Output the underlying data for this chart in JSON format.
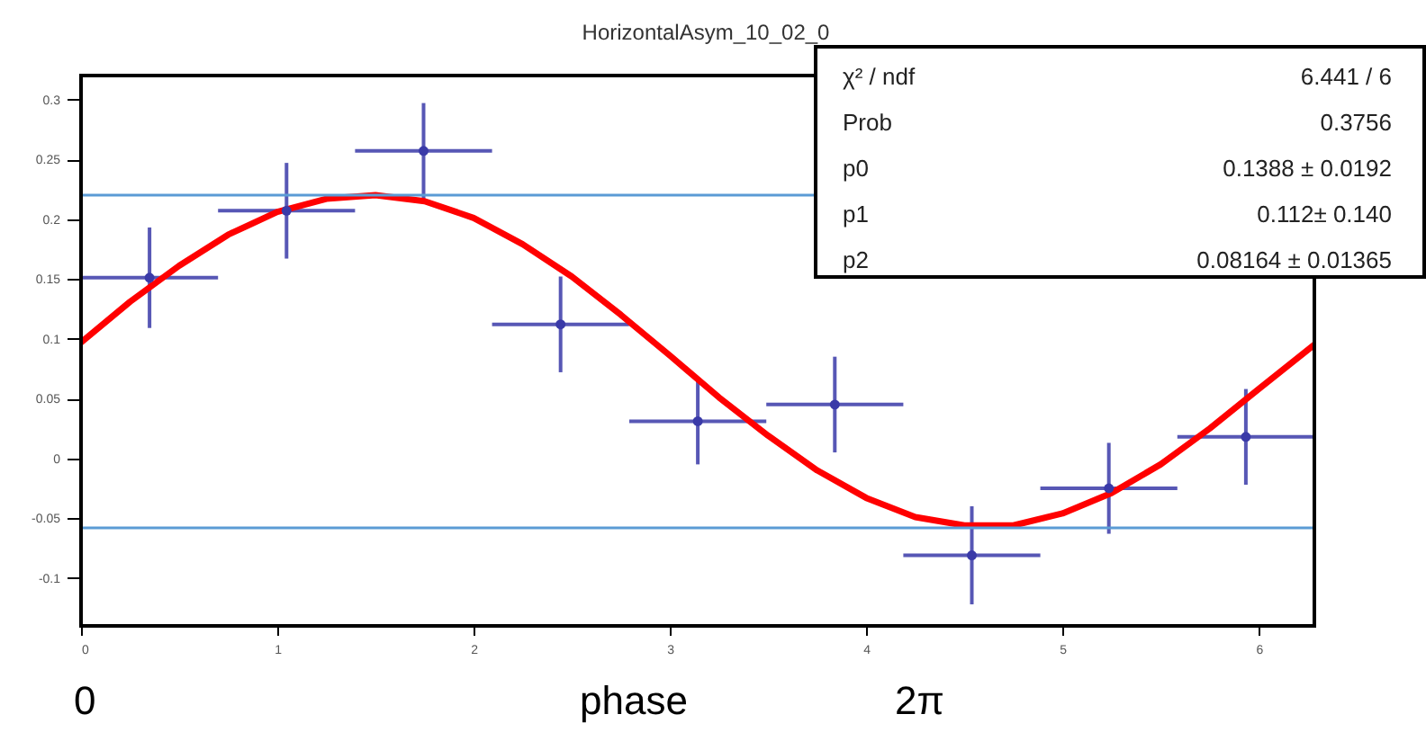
{
  "chart_data": {
    "type": "scatter",
    "title": "HorizontalAsym_10_02_0",
    "xlabel": "phase",
    "x": [
      0.349,
      1.047,
      1.745,
      2.443,
      3.142,
      3.84,
      4.538,
      5.236,
      5.934
    ],
    "series": [
      {
        "color": "#3a3aa8",
        "values": [
          0.151,
          0.207,
          0.257,
          0.112,
          0.031,
          0.045,
          -0.081,
          -0.025,
          0.018
        ],
        "errors": [
          0.042,
          0.04,
          0.04,
          0.04,
          0.036,
          0.04,
          0.041,
          0.038,
          0.04
        ],
        "xerrors": [
          0.349,
          0.349,
          0.349,
          0.349,
          0.349,
          0.349,
          0.349,
          0.349,
          0.349
        ]
      },
      {
        "type": "line",
        "color": "#ff0000",
        "x": [
          0,
          0.25,
          0.5,
          0.75,
          1.0,
          1.25,
          1.5,
          1.75,
          2.0,
          2.25,
          2.5,
          2.75,
          3.0,
          3.25,
          3.5,
          3.75,
          4.0,
          4.25,
          4.5,
          4.75,
          5.0,
          5.25,
          5.5,
          5.75,
          6.0,
          6.283
        ],
        "values": [
          0.097,
          0.131,
          0.161,
          0.187,
          0.206,
          0.217,
          0.22,
          0.215,
          0.201,
          0.179,
          0.152,
          0.12,
          0.086,
          0.051,
          0.019,
          -0.01,
          -0.033,
          -0.049,
          -0.056,
          -0.056,
          -0.046,
          -0.029,
          -0.005,
          0.025,
          0.058,
          0.095
        ]
      }
    ],
    "xlim": [
      0,
      6.283
    ],
    "xticks": [
      0,
      1,
      2,
      3,
      4,
      5,
      6
    ],
    "ylim": [
      -0.14,
      0.32
    ],
    "yticks": [
      -0.1,
      -0.05,
      0,
      0.05,
      0.1,
      0.15,
      0.2,
      0.25,
      0.3
    ],
    "ref_lines": [
      {
        "axis": "y",
        "value": 0.22,
        "color": "#5b9bd5"
      },
      {
        "axis": "y",
        "value": -0.058,
        "color": "#5b9bd5"
      }
    ],
    "annotations": [
      "χ² / ndf",
      "6.441  / 6",
      "Prob",
      "0.3756",
      "p0",
      "0.1388 ± 0.0192",
      "p1",
      "0.112± 0.140",
      "p2",
      "0.08164 ± 0.01365",
      "0",
      "2π"
    ],
    "grid": false
  }
}
